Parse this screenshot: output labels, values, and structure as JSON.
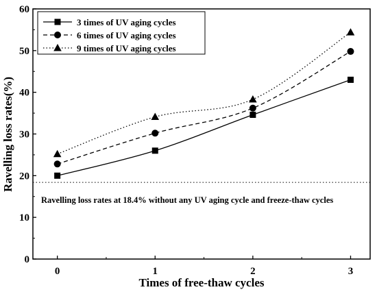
{
  "chart_data": {
    "type": "line",
    "x": [
      0,
      1,
      2,
      3
    ],
    "xticks": [
      "0",
      "1",
      "2",
      "3"
    ],
    "yticks": [
      "0",
      "10",
      "20",
      "30",
      "40",
      "50",
      "60"
    ],
    "xlabel": "Times of free-thaw cycles",
    "ylabel": "Ravelling loss rates(%)",
    "xlim": [
      -0.25,
      3.2
    ],
    "ylim": [
      0,
      60
    ],
    "grid": false,
    "legend_position": "top-left",
    "series": [
      {
        "name": "3 times of UV aging cycles",
        "values": [
          20.0,
          26.0,
          34.6,
          43.0
        ],
        "marker": "square",
        "line_style": "solid",
        "color": "#000000"
      },
      {
        "name": "6 times of UV aging cycles",
        "values": [
          22.8,
          30.2,
          36.2,
          49.8
        ],
        "marker": "circle",
        "line_style": "dashed",
        "color": "#000000"
      },
      {
        "name": "9 times of UV aging cycles",
        "values": [
          25.2,
          34.1,
          38.3,
          54.4
        ],
        "marker": "triangle",
        "line_style": "dotted",
        "color": "#000000"
      }
    ],
    "reference_line": {
      "y": 18.4,
      "line_style": "dotted"
    },
    "annotation": "Ravelling loss rates at 18.4% without any UV aging cycle and freeze-thaw cycles"
  }
}
